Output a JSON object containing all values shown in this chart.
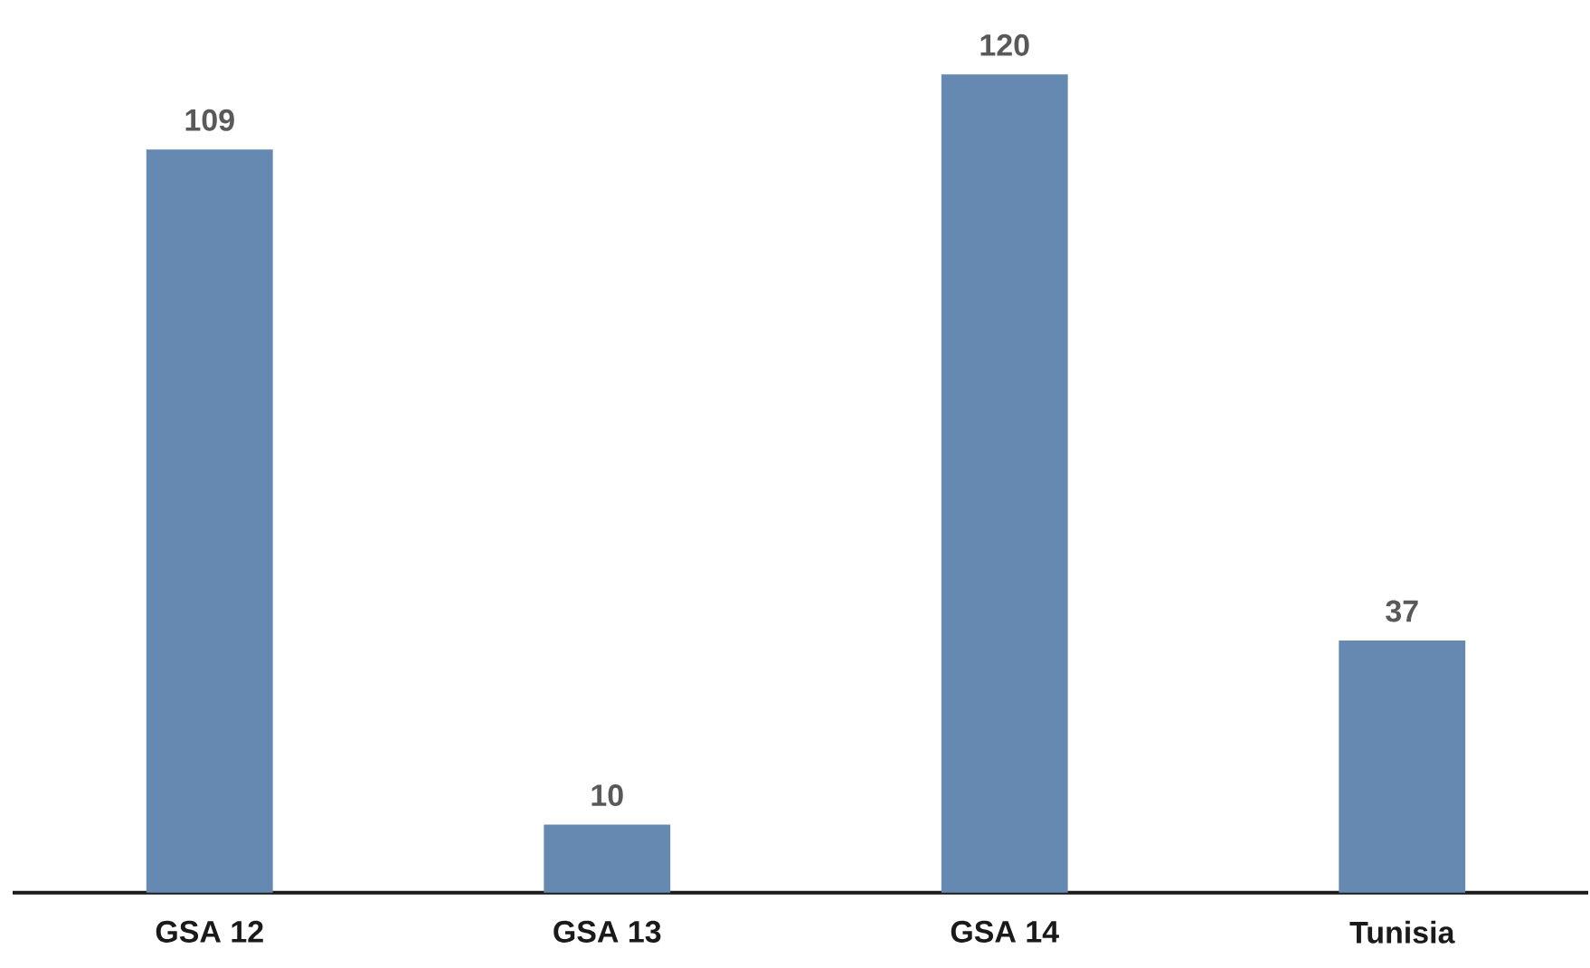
{
  "chart_data": {
    "type": "bar",
    "categories": [
      "GSA 12",
      "GSA 13",
      "GSA 14",
      "Tunisia"
    ],
    "values": [
      109,
      10,
      120,
      37
    ],
    "color": "#6589b1",
    "data_labels": true
  }
}
